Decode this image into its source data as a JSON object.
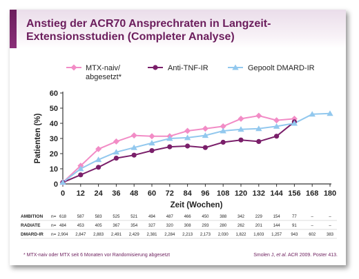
{
  "title": "Anstieg der ACR70 Ansprechraten in Langzeit-Extensionsstudien (Completer Analyse)",
  "title_line1": "Anstieg der ACR70 Ansprechraten in Langzeit-",
  "title_line2": "Extensionsstudien (Completer Analyse)",
  "footnote": "* MTX-naiv oder MTX seit 6 Monaten vor Randomisierung abgesetzt",
  "source": {
    "prefix": "Smolen J, ",
    "italic": "et al.",
    "suffix": " ACR 2009. Poster 413."
  },
  "colors": {
    "title": "#6b1d5c",
    "mtx": "#f28cc6",
    "antitnf": "#7a1f6a",
    "dmard": "#92c8ee"
  },
  "chart_data": {
    "type": "line",
    "title": "",
    "xlabel": "Zeit (Wochen)",
    "ylabel": "Patienten (%)",
    "xlim": [
      0,
      180
    ],
    "ylim": [
      0,
      60
    ],
    "xticks": [
      0,
      12,
      24,
      36,
      48,
      60,
      72,
      84,
      96,
      108,
      120,
      132,
      144,
      156,
      168,
      180
    ],
    "yticks": [
      0,
      10,
      20,
      30,
      40,
      50,
      60
    ],
    "grid": false,
    "legend_position": "top",
    "series": [
      {
        "name": "MTX-naiv/ abgesetzt*",
        "legend_line1": "MTX-naiv/",
        "legend_line2": "abgesetzt*",
        "color": "#f28cc6",
        "marker": "diamond",
        "x": [
          0,
          12,
          24,
          36,
          48,
          60,
          72,
          84,
          96,
          108,
          120,
          132,
          144,
          156
        ],
        "y": [
          1,
          12,
          23,
          28,
          32,
          31.5,
          31.5,
          35,
          36.5,
          38,
          43,
          45,
          42,
          43
        ]
      },
      {
        "name": "Anti-TNF-IR",
        "color": "#7a1f6a",
        "marker": "circle",
        "x": [
          0,
          12,
          24,
          36,
          48,
          60,
          72,
          84,
          96,
          108,
          120,
          132,
          144,
          156
        ],
        "y": [
          1,
          6,
          11,
          17,
          19,
          22,
          24.5,
          25,
          24,
          27.5,
          29,
          28,
          31.5,
          41
        ]
      },
      {
        "name": "Gepoolt DMARD-IR",
        "color": "#92c8ee",
        "marker": "triangle",
        "x": [
          0,
          12,
          24,
          36,
          48,
          60,
          72,
          84,
          96,
          108,
          120,
          132,
          144,
          156,
          168,
          180
        ],
        "y": [
          1,
          10,
          16,
          21,
          24,
          27,
          30,
          30.5,
          32,
          35,
          36,
          36.5,
          38,
          40,
          46,
          46.5
        ]
      }
    ],
    "table": {
      "prefix": "n=",
      "rows": [
        {
          "label": "AMBITION",
          "values": [
            "618",
            "587",
            "583",
            "525",
            "521",
            "494",
            "487",
            "466",
            "450",
            "388",
            "342",
            "229",
            "154",
            "77",
            "–",
            "–"
          ]
        },
        {
          "label": "RADIATE",
          "values": [
            "484",
            "453",
            "405",
            "367",
            "354",
            "327",
            "320",
            "308",
            "293",
            "280",
            "262",
            "201",
            "144",
            "91",
            "–",
            "–"
          ]
        },
        {
          "label": "DMARD-IR",
          "values": [
            "2,904",
            "2,847",
            "2,883",
            "2,491",
            "2,429",
            "2,381",
            "2,284",
            "2,213",
            "2,173",
            "2,030",
            "1,822",
            "1,603",
            "1,257",
            "943",
            "602",
            "383"
          ]
        }
      ]
    }
  }
}
